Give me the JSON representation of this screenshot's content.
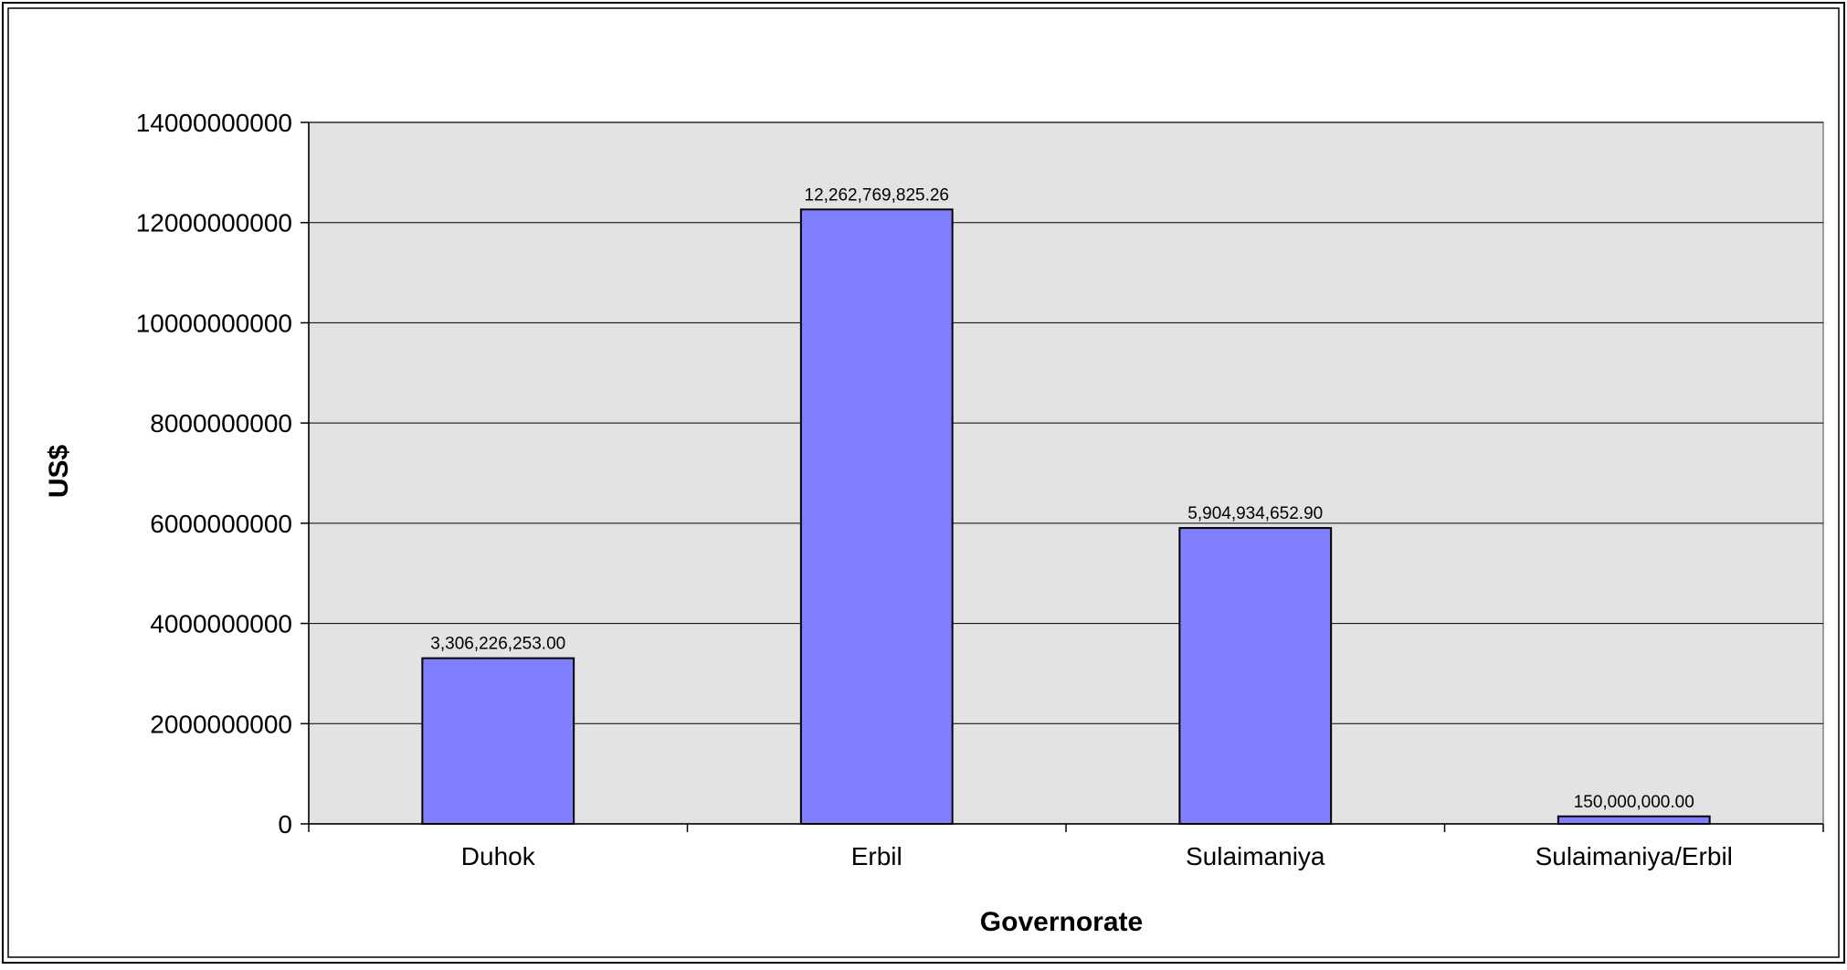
{
  "chart_data": {
    "type": "bar",
    "title": "",
    "xlabel": "Governorate",
    "ylabel": "US$",
    "categories": [
      "Duhok",
      "Erbil",
      "Sulaimaniya",
      "Sulaimaniya/Erbil"
    ],
    "values": [
      3306226253.0,
      12262769825.26,
      5904934652.9,
      150000000.0
    ],
    "data_labels": [
      "3,306,226,253.00",
      "12,262,769,825.26",
      "5,904,934,652.90",
      "150,000,000.00"
    ],
    "ylim": [
      0,
      14000000000
    ],
    "yticks": [
      0,
      2000000000,
      4000000000,
      6000000000,
      8000000000,
      10000000000,
      12000000000,
      14000000000
    ],
    "ytick_labels": [
      "0",
      "2000000000",
      "4000000000",
      "6000000000",
      "8000000000",
      "10000000000",
      "12000000000",
      "14000000000"
    ],
    "grid": true,
    "legend": "none",
    "colors": {
      "bar_fill": "#8080ff",
      "bar_stroke": "#000000",
      "plot_background": "#e3e3e3",
      "gridline": "#000000",
      "frame": "#000000"
    }
  }
}
